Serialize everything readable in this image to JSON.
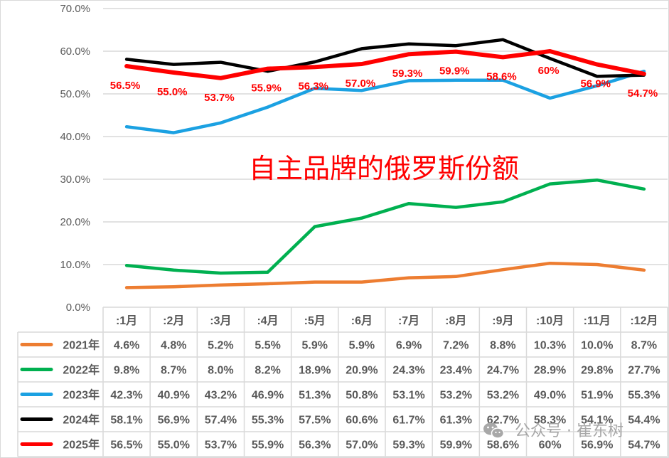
{
  "chart_data": {
    "type": "line",
    "title": "自主品牌的俄罗斯份额",
    "xlabel": "",
    "ylabel": "",
    "ylim": [
      0,
      70
    ],
    "yticks": [
      "0.0%",
      "10.0%",
      "20.0%",
      "30.0%",
      "40.0%",
      "50.0%",
      "60.0%",
      "70.0%"
    ],
    "grid": true,
    "legend_position": "data-table-left",
    "categories": [
      ":1月",
      ":2月",
      ":3月",
      ":4月",
      ":5月",
      ":6月",
      ":7月",
      ":8月",
      ":9月",
      ":10月",
      ":11月",
      ":12月"
    ],
    "series": [
      {
        "name": "2021年",
        "color": "#ed7d31",
        "values": [
          4.6,
          4.8,
          5.2,
          5.5,
          5.9,
          5.9,
          6.9,
          7.2,
          8.8,
          10.3,
          10.0,
          8.7
        ],
        "labels": [
          "4.6%",
          "4.8%",
          "5.2%",
          "5.5%",
          "5.9%",
          "5.9%",
          "6.9%",
          "7.2%",
          "8.8%",
          "10.3%",
          "10.0%",
          "8.7%"
        ]
      },
      {
        "name": "2022年",
        "color": "#00b050",
        "values": [
          9.8,
          8.7,
          8.0,
          8.2,
          18.9,
          20.9,
          24.3,
          23.4,
          24.7,
          28.9,
          29.8,
          27.7
        ],
        "labels": [
          "9.8%",
          "8.7%",
          "8.0%",
          "8.2%",
          "18.9%",
          "20.9%",
          "24.3%",
          "23.4%",
          "24.7%",
          "28.9%",
          "29.8%",
          "27.7%"
        ]
      },
      {
        "name": "2023年",
        "color": "#1ba1e2",
        "values": [
          42.3,
          40.9,
          43.2,
          46.9,
          51.3,
          50.8,
          53.1,
          53.2,
          53.2,
          49.0,
          51.9,
          55.3
        ],
        "labels": [
          "42.3%",
          "40.9%",
          "43.2%",
          "46.9%",
          "51.3%",
          "50.8%",
          "53.1%",
          "53.2%",
          "53.2%",
          "49.0%",
          "51.9%",
          "55.3%"
        ]
      },
      {
        "name": "2024年",
        "color": "#000000",
        "values": [
          58.1,
          56.9,
          57.4,
          55.3,
          57.5,
          60.6,
          61.7,
          61.3,
          62.7,
          58.3,
          54.1,
          54.4
        ],
        "labels": [
          "58.1%",
          "56.9%",
          "57.4%",
          "55.3%",
          "57.5%",
          "60.6%",
          "61.7%",
          "61.3%",
          "62.7%",
          "58.3%",
          "54.1%",
          "54.4%"
        ]
      },
      {
        "name": "2025年",
        "color": "#ff0000",
        "values": [
          56.5,
          55.0,
          53.7,
          55.9,
          56.3,
          57.0,
          59.3,
          59.9,
          58.6,
          60,
          56.9,
          54.7
        ],
        "labels": [
          "56.5%",
          "55.0%",
          "53.7%",
          "55.9%",
          "56.3%",
          "57.0%",
          "59.3%",
          "59.9%",
          "58.6%",
          "60%",
          "56.9%",
          "54.7%"
        ],
        "data_labels_shown": true
      }
    ]
  },
  "watermark": {
    "text": "公众号 · 崔东树",
    "icon": "wechat-icon"
  }
}
